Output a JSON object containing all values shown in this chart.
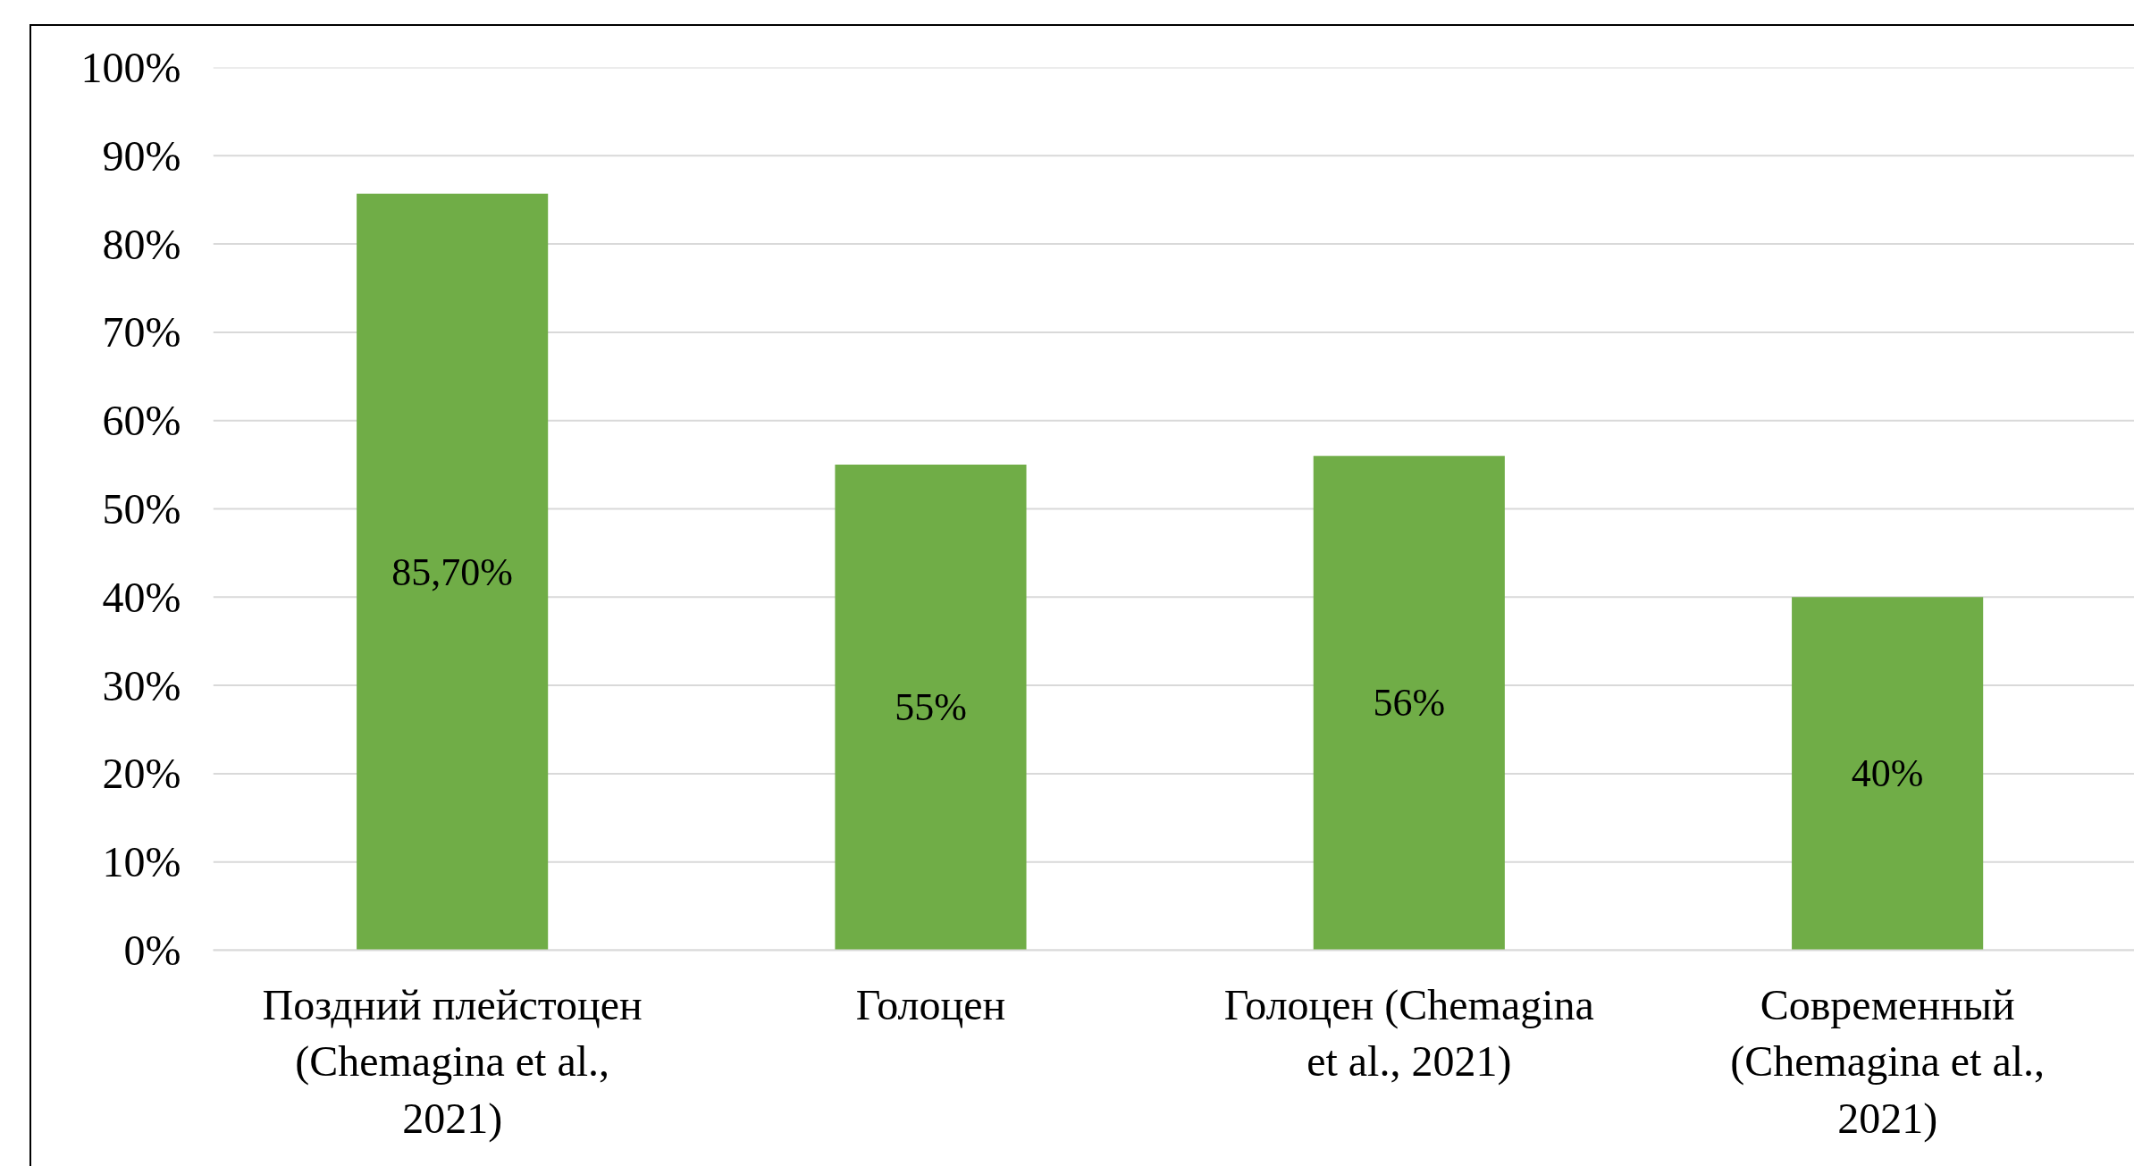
{
  "chart_data": {
    "type": "bar",
    "categories": [
      "Поздний плейстоцен (Chemagina et al., 2021)",
      "Голоцен",
      "Голоцен (Chemagina et al., 2021)",
      "Современный (Chemagina et al., 2021)"
    ],
    "values": [
      85.7,
      55,
      56,
      40
    ],
    "value_labels": [
      "85,70%",
      "55%",
      "56%",
      "40%"
    ],
    "color": "#70ad47",
    "ylim": [
      0,
      100
    ],
    "yticks": [
      {
        "value": 0,
        "label": "0%"
      },
      {
        "value": 10,
        "label": "10%"
      },
      {
        "value": 20,
        "label": "20%"
      },
      {
        "value": 30,
        "label": "30%"
      },
      {
        "value": 40,
        "label": "40%"
      },
      {
        "value": 50,
        "label": "50%"
      },
      {
        "value": 60,
        "label": "60%"
      },
      {
        "value": 70,
        "label": "70%"
      },
      {
        "value": 80,
        "label": "80%"
      },
      {
        "value": 90,
        "label": "90%"
      },
      {
        "value": 100,
        "label": "100%"
      }
    ],
    "grid": "y"
  }
}
